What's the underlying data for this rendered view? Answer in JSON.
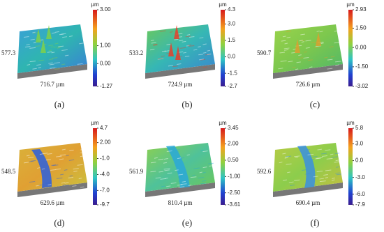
{
  "panels": [
    {
      "label": "(a)",
      "side": "577.3",
      "bottom": "716.7 µm",
      "unit": "µm",
      "ticks": [
        "3.00",
        "1.00",
        "0.00",
        "-1.27"
      ]
    },
    {
      "label": "(b)",
      "side": "533.2",
      "bottom": "724.9 µm",
      "unit": "µm",
      "ticks": [
        "4.3",
        "3.0",
        "1.5",
        "0.0",
        "-1.5",
        "-2.7"
      ]
    },
    {
      "label": "(c)",
      "side": "590.7",
      "bottom": "726.6 µm",
      "unit": "µm",
      "ticks": [
        "2.93",
        "1.50",
        "0.00",
        "-1.50",
        "-3.02"
      ]
    },
    {
      "label": "(d)",
      "side": "548.5",
      "bottom": "629.6 µm",
      "unit": "µm",
      "ticks": [
        "4.7",
        "2.00",
        "-1.0",
        "-4.0",
        "-7.0",
        "-9.7"
      ]
    },
    {
      "label": "(e)",
      "side": "561.9",
      "bottom": "810.4 µm",
      "unit": "µm",
      "ticks": [
        "3.45",
        "2.00",
        "0.50",
        "-1.00",
        "-2.50",
        "-3.61"
      ]
    },
    {
      "label": "(f)",
      "side": "592.6",
      "bottom": "690.4 µm",
      "unit": "µm",
      "ticks": [
        "5.8",
        "3.0",
        "0.0",
        "-3.0",
        "-6.0",
        "-7.9"
      ]
    }
  ]
}
